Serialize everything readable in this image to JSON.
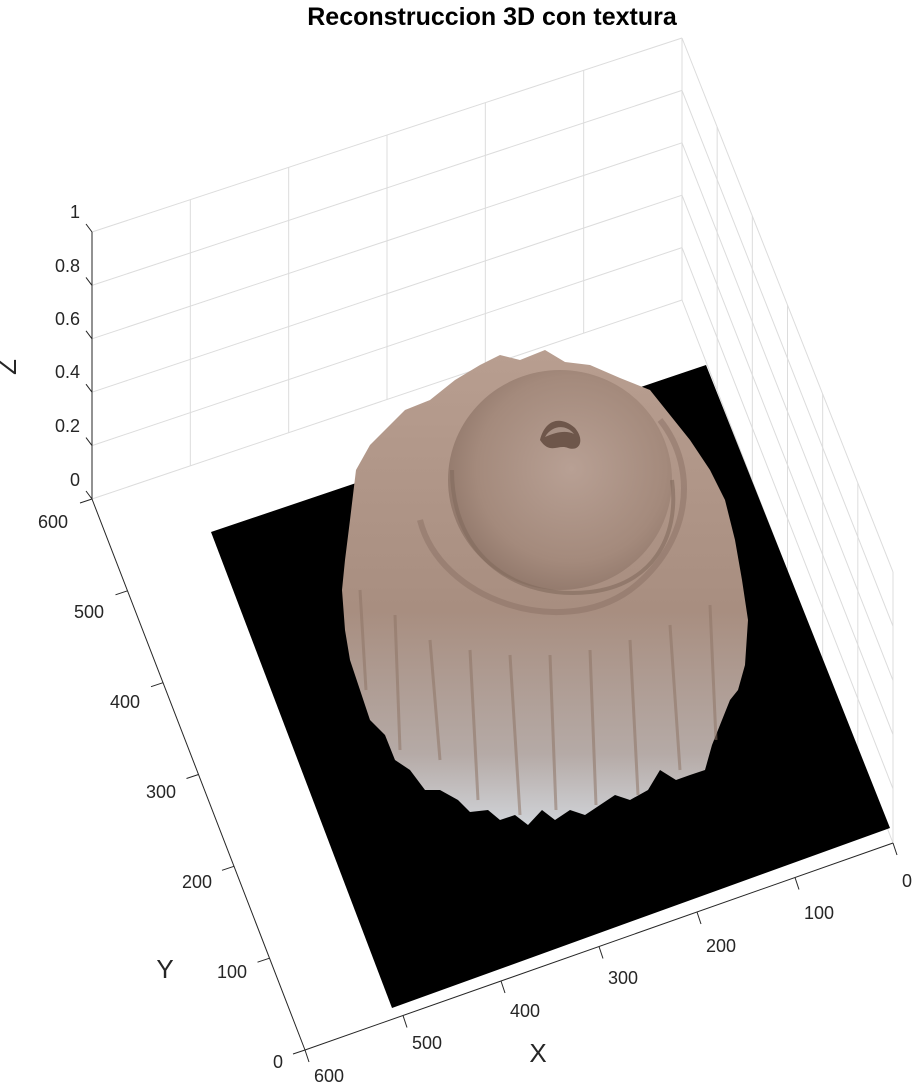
{
  "chart_data": {
    "type": "surface",
    "title": "Reconstruccion 3D con textura",
    "xlabel": "X",
    "ylabel": "Y",
    "zlabel": "Z",
    "xlim": [
      0,
      600
    ],
    "ylim": [
      0,
      600
    ],
    "zlim": [
      0,
      1
    ],
    "x_ticks": [
      "0",
      "100",
      "200",
      "300",
      "400",
      "500",
      "600"
    ],
    "y_ticks": [
      "0",
      "100",
      "200",
      "300",
      "400",
      "500",
      "600"
    ],
    "z_ticks": [
      "0",
      "0.2",
      "0.4",
      "0.6",
      "0.8",
      "1"
    ],
    "grid": true,
    "colors": {
      "base_plane": "#000000",
      "texture_light": "#c9b2a6",
      "texture_mid": "#b39a8c",
      "texture_dark": "#8c7468",
      "texture_edge": "#d3d6dc"
    }
  }
}
